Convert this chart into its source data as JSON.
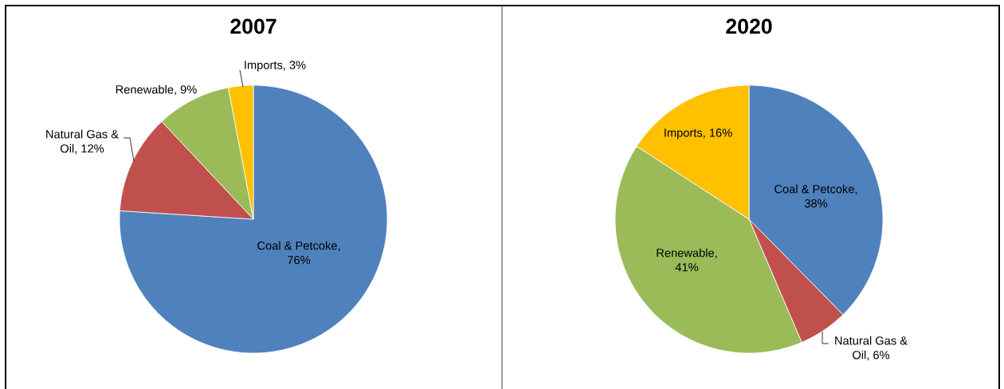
{
  "chart_data": [
    {
      "type": "pie",
      "title": "2007",
      "categories": [
        null,
        null,
        null,
        null
      ],
      "values": [
        76,
        12,
        9,
        3
      ],
      "value_labels": [
        "Coal & Petcoke, 76%",
        "Natural Gas & Oil, 12%",
        "Renewable, 9%",
        "Imports, 3%"
      ],
      "colors": [
        "#4f81bd",
        "#c0504d",
        "#9bbb59",
        "#ffc000"
      ]
    },
    {
      "type": "pie",
      "title": "2020",
      "categories": [
        null,
        null,
        null,
        null
      ],
      "values": [
        38,
        6,
        41,
        16
      ],
      "value_labels": [
        "Coal & Petcoke, 38%",
        "Natural Gas & Oil, 6%",
        "Renewable, 41%",
        "Imports, 16%"
      ],
      "colors": [
        "#4f81bd",
        "#c0504d",
        "#9bbb59",
        "#ffc000"
      ]
    }
  ]
}
